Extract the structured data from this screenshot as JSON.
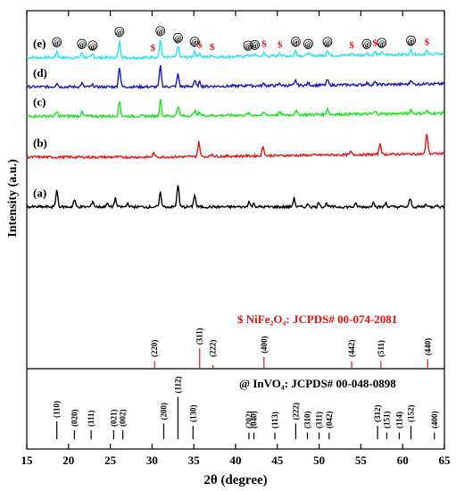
{
  "chart_data": {
    "type": "line",
    "xlabel": "2θ (degree)",
    "ylabel": "Intensity (a.u.)",
    "xlim": [
      15,
      65
    ],
    "x_ticks": [
      15,
      20,
      25,
      30,
      35,
      40,
      45,
      50,
      55,
      60,
      65
    ],
    "series": [
      {
        "name": "(e)",
        "color": "#22E5F2",
        "baseline": 0.84,
        "noise": 0.0045,
        "rise": [
          [
            30,
            0.0
          ],
          [
            65,
            0.012
          ]
        ],
        "peaks": [
          [
            18.6,
            0.022
          ],
          [
            21.6,
            0.017
          ],
          [
            22.9,
            0.01
          ],
          [
            26.1,
            0.055
          ],
          [
            30.1,
            0.006
          ],
          [
            31.0,
            0.06
          ],
          [
            33.1,
            0.04
          ],
          [
            35.1,
            0.022
          ],
          [
            35.7,
            0.014
          ],
          [
            37.2,
            0.006
          ],
          [
            41.5,
            0.008
          ],
          [
            42.3,
            0.008
          ],
          [
            43.4,
            0.01
          ],
          [
            45.3,
            0.012
          ],
          [
            47.2,
            0.018
          ],
          [
            48.7,
            0.01
          ],
          [
            51.0,
            0.02
          ],
          [
            53.9,
            0.006
          ],
          [
            55.7,
            0.008
          ],
          [
            56.7,
            0.01
          ],
          [
            57.5,
            0.01
          ],
          [
            61.0,
            0.016
          ],
          [
            62.9,
            0.012
          ]
        ]
      },
      {
        "name": "(d)",
        "color": "#1518C9",
        "baseline": 0.74,
        "noise": 0.0045,
        "rise": [
          [
            30,
            0.0
          ],
          [
            65,
            0.01
          ]
        ],
        "peaks": [
          [
            18.6,
            0.014
          ],
          [
            21.6,
            0.012
          ],
          [
            22.9,
            0.006
          ],
          [
            26.1,
            0.068
          ],
          [
            31.0,
            0.07
          ],
          [
            33.1,
            0.042
          ],
          [
            35.1,
            0.02
          ],
          [
            35.7,
            0.014
          ],
          [
            41.5,
            0.006
          ],
          [
            43.4,
            0.008
          ],
          [
            45.3,
            0.008
          ],
          [
            47.2,
            0.016
          ],
          [
            48.7,
            0.008
          ],
          [
            51.0,
            0.018
          ],
          [
            55.7,
            0.006
          ],
          [
            56.7,
            0.008
          ],
          [
            61.0,
            0.016
          ],
          [
            62.9,
            0.008
          ]
        ]
      },
      {
        "name": "(c)",
        "color": "#18E318",
        "baseline": 0.64,
        "noise": 0.0045,
        "rise": [
          [
            30,
            0.0
          ],
          [
            65,
            0.01
          ]
        ],
        "peaks": [
          [
            18.6,
            0.014
          ],
          [
            21.6,
            0.012
          ],
          [
            26.1,
            0.05
          ],
          [
            31.0,
            0.054
          ],
          [
            33.1,
            0.034
          ],
          [
            35.1,
            0.02
          ],
          [
            35.7,
            0.012
          ],
          [
            41.5,
            0.006
          ],
          [
            43.4,
            0.008
          ],
          [
            45.3,
            0.008
          ],
          [
            47.2,
            0.016
          ],
          [
            51.0,
            0.02
          ],
          [
            56.7,
            0.008
          ],
          [
            61.0,
            0.014
          ],
          [
            62.9,
            0.008
          ]
        ]
      },
      {
        "name": "(b)",
        "color": "#EB1010",
        "baseline": 0.5,
        "noise": 0.004,
        "rise": [
          [
            30,
            0.0
          ],
          [
            65,
            0.012
          ]
        ],
        "peaks": [
          [
            30.2,
            0.014
          ],
          [
            35.6,
            0.05
          ],
          [
            37.2,
            0.008
          ],
          [
            43.3,
            0.032
          ],
          [
            53.8,
            0.01
          ],
          [
            57.3,
            0.038
          ],
          [
            62.9,
            0.07
          ]
        ]
      },
      {
        "name": "(a)",
        "color": "#000000",
        "baseline": 0.33,
        "noise": 0.0045,
        "rise": [
          [
            30,
            0.0
          ],
          [
            65,
            0.0
          ]
        ],
        "peaks": [
          [
            18.6,
            0.058
          ],
          [
            20.7,
            0.024
          ],
          [
            22.9,
            0.02
          ],
          [
            24.6,
            0.012
          ],
          [
            25.6,
            0.028
          ],
          [
            27.1,
            0.012
          ],
          [
            31.0,
            0.048
          ],
          [
            33.1,
            0.076
          ],
          [
            35.1,
            0.042
          ],
          [
            41.6,
            0.018
          ],
          [
            42.2,
            0.012
          ],
          [
            47.0,
            0.03
          ],
          [
            48.7,
            0.01
          ],
          [
            50.0,
            0.016
          ],
          [
            50.9,
            0.012
          ],
          [
            54.4,
            0.01
          ],
          [
            56.5,
            0.02
          ],
          [
            58.0,
            0.014
          ],
          [
            60.9,
            0.028
          ],
          [
            62.8,
            0.01
          ],
          [
            64.0,
            0.008
          ]
        ]
      }
    ],
    "e_markers": [
      {
        "x": 18.6,
        "symbol": "@"
      },
      {
        "x": 21.6,
        "symbol": "@"
      },
      {
        "x": 22.9,
        "symbol": "@"
      },
      {
        "x": 26.1,
        "symbol": "@"
      },
      {
        "x": 30.1,
        "symbol": "$"
      },
      {
        "x": 31.0,
        "symbol": "@"
      },
      {
        "x": 33.1,
        "symbol": "@"
      },
      {
        "x": 35.1,
        "symbol": "@"
      },
      {
        "x": 35.7,
        "symbol": "$"
      },
      {
        "x": 37.2,
        "symbol": "$"
      },
      {
        "x": 41.5,
        "symbol": "@"
      },
      {
        "x": 42.3,
        "symbol": "@"
      },
      {
        "x": 43.4,
        "symbol": "$"
      },
      {
        "x": 45.3,
        "symbol": "$"
      },
      {
        "x": 47.2,
        "symbol": "@"
      },
      {
        "x": 48.7,
        "symbol": "@"
      },
      {
        "x": 51.0,
        "symbol": "@"
      },
      {
        "x": 53.9,
        "symbol": "$"
      },
      {
        "x": 55.7,
        "symbol": "@"
      },
      {
        "x": 56.7,
        "symbol": "$"
      },
      {
        "x": 57.5,
        "symbol": "@"
      },
      {
        "x": 61.0,
        "symbol": "@"
      },
      {
        "x": 62.9,
        "symbol": "$"
      }
    ],
    "nife2o4_reference": {
      "label": "$ NiFe₂O₄: JCPDS# 00-074-2081",
      "color": "#EB1010",
      "lines": [
        {
          "x": 30.3,
          "hkl": "(220)",
          "h": 0.35
        },
        {
          "x": 35.7,
          "hkl": "(311)",
          "h": 0.95
        },
        {
          "x": 37.3,
          "hkl": "(222)",
          "h": 0.15
        },
        {
          "x": 43.4,
          "hkl": "(400)",
          "h": 0.55
        },
        {
          "x": 53.9,
          "hkl": "(442)",
          "h": 0.35
        },
        {
          "x": 57.4,
          "hkl": "(511)",
          "h": 0.35
        },
        {
          "x": 63.0,
          "hkl": "(440)",
          "h": 0.45
        }
      ]
    },
    "invo4_reference": {
      "label": "@ InVO₄: JCPDS# 00-048-0898",
      "color": "#000000",
      "lines": [
        {
          "x": 18.6,
          "hkl": "(110)",
          "h": 0.4
        },
        {
          "x": 20.7,
          "hkl": "(020)",
          "h": 0.2
        },
        {
          "x": 22.7,
          "hkl": "(111)",
          "h": 0.2
        },
        {
          "x": 25.4,
          "hkl": "(021)",
          "h": 0.2
        },
        {
          "x": 26.5,
          "hkl": "(002)",
          "h": 0.2
        },
        {
          "x": 31.4,
          "hkl": "(200)",
          "h": 0.35
        },
        {
          "x": 33.1,
          "hkl": "(112)",
          "h": 0.95
        },
        {
          "x": 34.9,
          "hkl": "(130)",
          "h": 0.3
        },
        {
          "x": 41.6,
          "hkl": "(202)",
          "h": 0.15
        },
        {
          "x": 42.2,
          "hkl": "(040)",
          "h": 0.15
        },
        {
          "x": 44.7,
          "hkl": "(113)",
          "h": 0.15
        },
        {
          "x": 47.2,
          "hkl": "(222)",
          "h": 0.35
        },
        {
          "x": 48.6,
          "hkl": "(310)",
          "h": 0.15
        },
        {
          "x": 50.0,
          "hkl": "(311)",
          "h": 0.15
        },
        {
          "x": 51.2,
          "hkl": "(042)",
          "h": 0.15
        },
        {
          "x": 57.0,
          "hkl": "(312)",
          "h": 0.3
        },
        {
          "x": 58.1,
          "hkl": "(151)",
          "h": 0.15
        },
        {
          "x": 59.6,
          "hkl": "(114)",
          "h": 0.15
        },
        {
          "x": 61.0,
          "hkl": "(152)",
          "h": 0.3
        },
        {
          "x": 63.8,
          "hkl": "(400)",
          "h": 0.15
        }
      ]
    }
  }
}
